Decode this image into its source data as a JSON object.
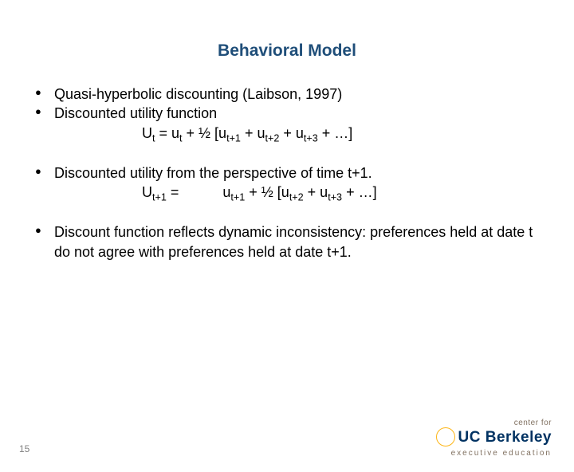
{
  "title": "Behavioral Model",
  "b1": "Quasi-hyperbolic discounting (Laibson, 1997)",
  "b2": "Discounted utility function",
  "f1a": "U",
  "f1b": "t",
  "f1c": " = u",
  "f1d": "t",
  "f1e": " + ½ [u",
  "f1f": "t+1",
  "f1g": " +   u",
  "f1h": "t+2",
  "f1i": " +   u",
  "f1j": "t+3",
  "f1k": " + …]",
  "b3": "Discounted utility from the perspective of time t+1.",
  "f2a": "U",
  "f2b": "t+1",
  "f2c": " =           u",
  "f2d": "t+1",
  "f2e": " + ½ [u",
  "f2f": "t+2",
  "f2g": " +   u",
  "f2h": "t+3",
  "f2i": " + …]",
  "b4": "Discount function reflects dynamic inconsistency: preferences held at date t do not agree with preferences held at date t+1.",
  "pagenum": "15",
  "logo_top": "center for",
  "logo_main": "UC Berkeley",
  "logo_sub": "executive education"
}
